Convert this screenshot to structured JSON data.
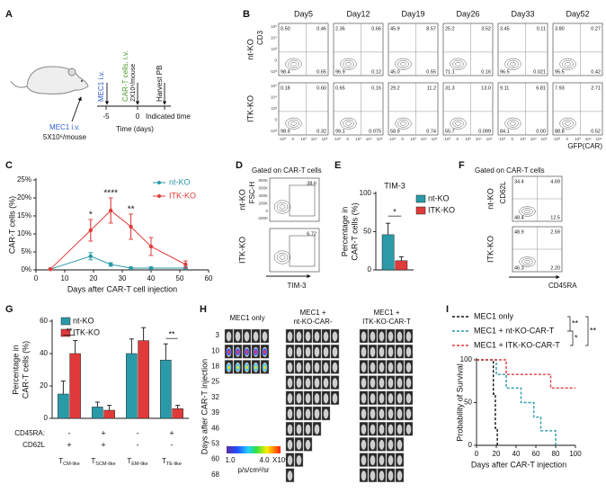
{
  "panel_labels": [
    "A",
    "B",
    "C",
    "D",
    "E",
    "F",
    "G",
    "H",
    "I"
  ],
  "panel_a": {
    "injection_label": "MEC1 i.v.",
    "car_label": "CAR-T cells, i.v.",
    "car_dose": "2X10⁶/mouse",
    "harvest_label": "Harvest PB",
    "timeline_ticks": [
      "-5",
      "0",
      "Indicated time"
    ],
    "time_axis_label": "Time (days)",
    "mec1_label": "MEC1 i.v.",
    "mec1_dose": "5X10⁶/mouse"
  },
  "panel_b": {
    "days": [
      "Day5",
      "Day12",
      "Day19",
      "Day26",
      "Day33",
      "Day52"
    ],
    "rows": [
      {
        "label": "nt-KO",
        "quadrants": [
          [
            "0.50",
            "0.46",
            "98.4",
            "0.65"
          ],
          [
            "2.36",
            "0.66",
            "96.9",
            "0.12"
          ],
          [
            "45.9",
            "8.57",
            "45.0",
            "0.55"
          ],
          [
            "25.2",
            "3.52",
            "71.1",
            "0.16"
          ],
          [
            "3.45",
            "0.11",
            "96.5",
            "0.021"
          ],
          [
            "3.80",
            "0.27",
            "95.5",
            "0.42"
          ]
        ]
      },
      {
        "label": "ITK-KO",
        "quadrants": [
          [
            "0.18",
            "0.60",
            "98.9",
            "0.32"
          ],
          [
            "0.65",
            "0.16",
            "99.1",
            "0.075"
          ],
          [
            "29.2",
            "11.2",
            "58.9",
            "0.74"
          ],
          [
            "31.3",
            "13.0",
            "55.7",
            "0.099"
          ],
          [
            "9.11",
            "6.81",
            "84.1",
            "0.00"
          ],
          [
            "7.93",
            "2.71",
            "88.8",
            "0.52"
          ]
        ]
      }
    ],
    "y_axis_label": "CD3",
    "x_axis_label": "GFP(CAR)",
    "axis_ticks": [
      "-10³",
      "0",
      "10³",
      "10⁴",
      "10⁵"
    ]
  },
  "panel_d": {
    "title": "Gated on CAR-T cells",
    "rows": [
      {
        "label": "nt-KO",
        "value": "38.6"
      },
      {
        "label": "ITK-KO",
        "value": "6.72"
      }
    ],
    "y_axis_label": "FSC-H",
    "x_axis_label": "TIM-3",
    "y_ticks": [
      "800K",
      "600K",
      "400K",
      "200K",
      "0",
      "-200K"
    ]
  },
  "panel_f": {
    "title": "Gated on CAR-T cells",
    "rows": [
      {
        "label": "nt-KO",
        "quadrants": [
          "34.4",
          "4.69",
          "48.4",
          "12.5"
        ]
      },
      {
        "label": "ITK-KO",
        "quadrants": [
          "48.9",
          "2.59",
          "46.3",
          "2.20"
        ]
      }
    ],
    "y_axis_label": "CD62L",
    "x_axis_label": "CD45RA"
  },
  "panel_h": {
    "groups": [
      [
        "MEC1 only"
      ],
      [
        "MEC1 +",
        "nt-KO-CAR-"
      ],
      [
        "MEC1 +",
        "ITK-KO-CAR-T"
      ]
    ],
    "days": [
      3,
      10,
      18,
      25,
      32,
      39,
      46,
      53,
      60,
      68
    ],
    "y_label": "Days after CAR-T injection",
    "scale": {
      "min": "1.0",
      "max": "4.0",
      "unit": "X10⁶",
      "radiance_unit": "p/s/cm²/sr"
    }
  },
  "chart_data": [
    {
      "type": "line",
      "y_label": "CAR-T cells (%)",
      "x_label": "Days after CAR-T cell injection",
      "x": [
        5,
        19,
        26,
        33,
        40,
        52
      ],
      "series": [
        {
          "name": "nt-KO",
          "color": "#2a9aa8",
          "values": [
            0.2,
            3.8,
            1.5,
            0.5,
            0.5,
            0.5
          ],
          "errors": [
            0.2,
            1,
            0.5,
            0.3,
            0.3,
            0.3
          ]
        },
        {
          "name": "ITK-KO",
          "color": "#e03a3a",
          "values": [
            0.2,
            11,
            16.5,
            12,
            6.5,
            1.5
          ],
          "errors": [
            0.2,
            3,
            3.5,
            3.5,
            2.5,
            1
          ]
        }
      ],
      "significance": [
        null,
        "*",
        "****",
        "**",
        null,
        null
      ],
      "xlim": [
        0,
        60
      ],
      "xticks": [
        0,
        10,
        20,
        30,
        40,
        50,
        60
      ],
      "ylim": [
        0,
        25
      ],
      "yticks": [
        {
          "value": 0,
          "label": "0%"
        },
        {
          "value": 5,
          "label": "5%"
        },
        {
          "value": 10,
          "label": "10%"
        },
        {
          "value": 15,
          "label": "15%"
        },
        {
          "value": 20,
          "label": "20%"
        },
        {
          "value": 25,
          "label": "25%"
        }
      ]
    },
    {
      "type": "bar",
      "title": "TIM-3",
      "y_label": [
        "Percentage in",
        "CAR-T cells (%)"
      ],
      "series": [
        {
          "name": "nt-KO",
          "color": "#2a9aa8",
          "values": [
            46
          ],
          "errors": [
            15
          ]
        },
        {
          "name": "ITK-KO",
          "color": "#e03a3a",
          "values": [
            12
          ],
          "errors": [
            5
          ]
        }
      ],
      "significance": "*",
      "ylim": [
        0,
        100
      ],
      "yticks": [
        0,
        50,
        100
      ]
    },
    {
      "type": "bar",
      "y_label": [
        "Percentage in",
        "CAR-T cells (%)"
      ],
      "categories": [
        "TCM-like",
        "TSCM-like",
        "TEM-like",
        "TTE-like"
      ],
      "series": [
        {
          "name": "nt-KO",
          "color": "#2a9aa8",
          "values": [
            15,
            7,
            40,
            36
          ],
          "errors": [
            8,
            3,
            9,
            10
          ]
        },
        {
          "name": "ITK-KO",
          "color": "#e03a3a",
          "values": [
            40,
            5,
            48,
            6
          ],
          "errors": [
            8,
            3,
            8,
            2
          ]
        }
      ],
      "significance": [
        "**",
        null,
        null,
        "**"
      ],
      "marker_rows": [
        {
          "label": "CD45RA:",
          "signs": [
            "-",
            "+",
            "-",
            "+"
          ]
        },
        {
          "label": "CD62L",
          "signs": [
            "+",
            "+",
            "-",
            "-"
          ]
        }
      ],
      "ylim": [
        0,
        60
      ],
      "yticks": [
        0,
        20,
        40,
        60
      ]
    },
    {
      "type": "step",
      "y_label": "Probability of Survival",
      "x_label": "Days after CAR-T injection",
      "series": [
        {
          "name": "MEC1 only",
          "color": "#111111",
          "x": [
            0,
            17,
            17,
            19,
            19,
            21,
            21
          ],
          "values": [
            100,
            100,
            60,
            60,
            20,
            20,
            0
          ]
        },
        {
          "name": "MEC1 + nt-KO-CAR-T",
          "color": "#2a9aa8",
          "x": [
            0,
            20,
            20,
            30,
            30,
            45,
            45,
            58,
            58,
            65,
            65,
            80,
            80
          ],
          "values": [
            100,
            100,
            83,
            83,
            67,
            67,
            50,
            50,
            33,
            33,
            17,
            17,
            0
          ]
        },
        {
          "name": "MEC1 + ITK-KO-CAR-T",
          "color": "#e03a3a",
          "x": [
            0,
            30,
            30,
            75,
            75,
            100
          ],
          "values": [
            100,
            100,
            83,
            83,
            67,
            67
          ]
        }
      ],
      "significance": [
        {
          "text": "**",
          "pair": [
            0,
            1
          ]
        },
        {
          "text": "*",
          "pair": [
            1,
            2
          ]
        },
        {
          "text": "**",
          "pair": [
            0,
            2
          ]
        }
      ],
      "xlim": [
        0,
        100
      ],
      "xticks": [
        0,
        20,
        40,
        60,
        80,
        100
      ],
      "ylim": [
        0,
        100
      ],
      "yticks": [
        0,
        50,
        100
      ]
    }
  ]
}
